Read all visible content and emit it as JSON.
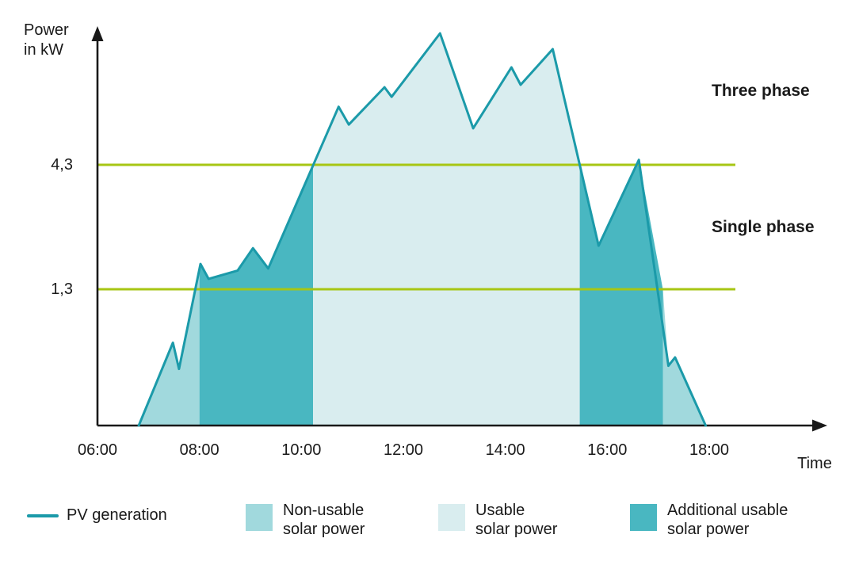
{
  "chart_data": {
    "type": "area",
    "title": "",
    "xlabel": "Time",
    "ylabel": "Power\nin kW",
    "xlim_hours": [
      6,
      18
    ],
    "ylim_kw": [
      0,
      7.5
    ],
    "grid": false,
    "legend_position": "bottom",
    "x_ticks": [
      {
        "hour": 6,
        "label": "06:00"
      },
      {
        "hour": 8,
        "label": "08:00"
      },
      {
        "hour": 10,
        "label": "10:00"
      },
      {
        "hour": 12,
        "label": "12:00"
      },
      {
        "hour": 14,
        "label": "14:00"
      },
      {
        "hour": 16,
        "label": "16:00"
      },
      {
        "hour": 18,
        "label": "18:00"
      }
    ],
    "y_ticks": [
      {
        "value": 4.3,
        "label": "4,3"
      },
      {
        "value": 1.3,
        "label": "1,3"
      }
    ],
    "thresholds": [
      {
        "value": 4.3,
        "label": "Three phase",
        "color": "#a7c614"
      },
      {
        "value": 1.3,
        "label": "Single phase",
        "color": "#a7c614"
      }
    ],
    "series": [
      {
        "name": "PV generation",
        "unit": "kW",
        "color": "#1b9aa9",
        "points": [
          [
            6.81,
            0
          ],
          [
            7.48,
            0.79
          ],
          [
            7.6,
            0.54
          ],
          [
            8.02,
            1.91
          ],
          [
            8.18,
            1.55
          ],
          [
            8.75,
            1.75
          ],
          [
            9.05,
            2.29
          ],
          [
            9.35,
            1.8
          ],
          [
            10.73,
            5.7
          ],
          [
            10.93,
            5.27
          ],
          [
            11.63,
            6.17
          ],
          [
            11.77,
            5.94
          ],
          [
            12.72,
            7.47
          ],
          [
            13.37,
            5.18
          ],
          [
            14.12,
            6.65
          ],
          [
            14.3,
            6.23
          ],
          [
            14.93,
            7.09
          ],
          [
            15.83,
            2.35
          ],
          [
            16.62,
            4.42
          ],
          [
            17.2,
            0.57
          ],
          [
            17.33,
            0.65
          ],
          [
            17.93,
            0
          ]
        ]
      }
    ],
    "regions": [
      {
        "name": "Non-usable solar power",
        "from_hour": 6.81,
        "to_hour": 8.0,
        "color": "#a1d9dd"
      },
      {
        "name": "Additional usable solar power",
        "from_hour": 8.0,
        "to_hour": 10.23,
        "color": "#49b7c1"
      },
      {
        "name": "Usable solar power",
        "from_hour": 10.23,
        "to_hour": 15.46,
        "color": "#d9edef"
      },
      {
        "name": "Additional usable solar power",
        "from_hour": 15.46,
        "to_hour": 17.09,
        "color": "#49b7c1"
      },
      {
        "name": "Non-usable solar power",
        "from_hour": 17.09,
        "to_hour": 17.93,
        "color": "#a1d9dd"
      }
    ]
  },
  "legend": {
    "items": [
      {
        "swatch": "line",
        "label": "PV generation",
        "color": "#1b9aa9"
      },
      {
        "swatch": "square",
        "label": "Non-usable\nsolar power",
        "color": "#a1d9dd"
      },
      {
        "swatch": "square",
        "label": "Usable\nsolar power",
        "color": "#d9edef"
      },
      {
        "swatch": "square",
        "label": "Additional usable\nsolar power",
        "color": "#49b7c1"
      }
    ]
  },
  "colors": {
    "axis": "#191919",
    "text": "#1a1a1a",
    "threshold_green": "#a7c614",
    "curve_teal": "#1b9aa9"
  }
}
